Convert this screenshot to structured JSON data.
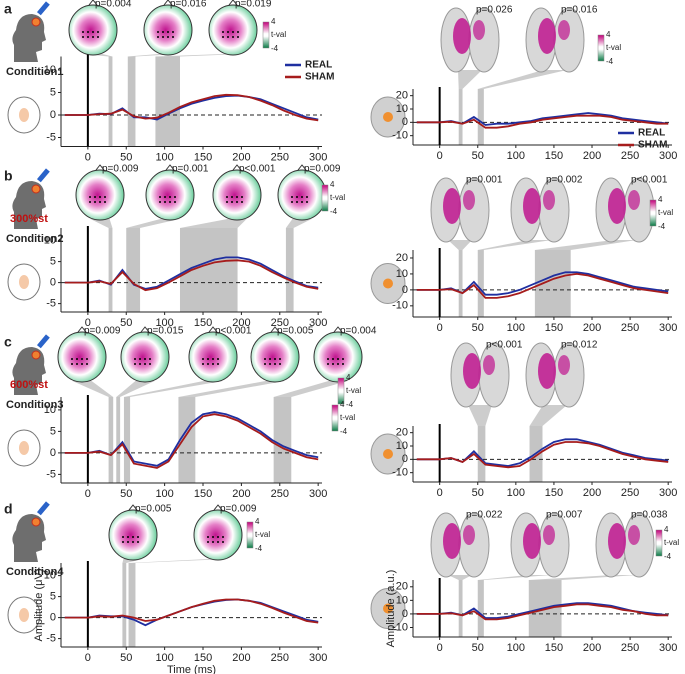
{
  "panels": [
    {
      "letter": "a",
      "condition": "Condition1"
    },
    {
      "letter": "b",
      "condition": "Condition2",
      "intensity": "300%st"
    },
    {
      "letter": "c",
      "condition": "Condition3",
      "intensity": "600%st"
    },
    {
      "letter": "d",
      "condition": "Condition4"
    }
  ],
  "chart_data": [
    {
      "type": "line",
      "x": [
        -30,
        -15,
        0,
        15,
        30,
        45,
        60,
        75,
        90,
        105,
        120,
        135,
        150,
        165,
        180,
        195,
        210,
        225,
        240,
        255,
        270,
        285,
        300
      ],
      "xlim": [
        -35,
        305
      ],
      "xticks": [
        0,
        50,
        100,
        150,
        200,
        250,
        300
      ],
      "ylim": [
        -7,
        13
      ],
      "yticks": [
        -5,
        0,
        5,
        10
      ],
      "series": [
        {
          "name": "REAL",
          "color": "#1f2fa0",
          "values": [
            0,
            0,
            0,
            0.3,
            0.2,
            1.5,
            -0.5,
            -0.5,
            -1,
            0.3,
            1.5,
            2.5,
            3.2,
            3.8,
            4.2,
            4.3,
            4.0,
            3.5,
            2.5,
            1.5,
            0.5,
            -0.5,
            -1
          ]
        },
        {
          "name": "SHAM",
          "color": "#a61c1c",
          "values": [
            0,
            0,
            0,
            0.2,
            0.3,
            1.2,
            -0.3,
            -0.8,
            -0.6,
            0.5,
            1.8,
            2.8,
            3.5,
            4.2,
            4.5,
            4.4,
            4.0,
            3.2,
            2.2,
            1.0,
            0,
            -0.8,
            -1.2
          ]
        }
      ],
      "clusters": [
        {
          "label": "p=0.004",
          "start": 27,
          "end": 32
        },
        {
          "label": "p=0.016",
          "start": 52,
          "end": 62
        },
        {
          "label": "p=0.019",
          "start": 88,
          "end": 120
        }
      ],
      "colorbar": {
        "ticks": [
          -4,
          4
        ],
        "label": "t-val"
      },
      "legend": true
    },
    {
      "type": "line",
      "x": [
        -30,
        -15,
        0,
        15,
        30,
        45,
        60,
        75,
        90,
        105,
        120,
        135,
        150,
        165,
        180,
        195,
        210,
        225,
        240,
        255,
        270,
        285,
        300
      ],
      "xlim": [
        -35,
        305
      ],
      "xticks": [
        0,
        50,
        100,
        150,
        200,
        250,
        300
      ],
      "ylim": [
        -17,
        25
      ],
      "yticks": [
        -10,
        0,
        10,
        20
      ],
      "series": [
        {
          "name": "REAL",
          "color": "#1f2fa0",
          "values": [
            0,
            0,
            0,
            1,
            -1,
            4,
            -2,
            -1,
            -1,
            0,
            1,
            3,
            4,
            5,
            6,
            7,
            6,
            5,
            3,
            2,
            1,
            0,
            -1
          ]
        },
        {
          "name": "SHAM",
          "color": "#a61c1c",
          "values": [
            0,
            0,
            0,
            0.5,
            -1,
            2,
            -4,
            -4,
            -3,
            -1,
            0,
            2,
            3,
            4,
            5,
            5,
            5,
            4,
            2,
            1,
            0,
            -1,
            -1
          ]
        }
      ],
      "clusters": [
        {
          "label": "p=0.026",
          "start": 25,
          "end": 30
        },
        {
          "label": "p=0.016",
          "start": 50,
          "end": 58
        }
      ],
      "colorbar": {
        "ticks": [
          -4,
          4
        ],
        "label": "t-val"
      },
      "legend": true
    },
    {
      "type": "line",
      "x": [
        -30,
        -15,
        0,
        15,
        30,
        45,
        60,
        75,
        90,
        105,
        120,
        135,
        150,
        165,
        180,
        195,
        210,
        225,
        240,
        255,
        270,
        285,
        300
      ],
      "xlim": [
        -35,
        305
      ],
      "xticks": [
        0,
        50,
        100,
        150,
        200,
        250,
        300
      ],
      "ylim": [
        -7,
        13
      ],
      "yticks": [
        -5,
        0,
        5,
        10
      ],
      "series": [
        {
          "name": "REAL",
          "color": "#1f2fa0",
          "values": [
            0,
            0,
            0,
            0.5,
            -0.5,
            3,
            -0.5,
            -1.5,
            -1,
            0.5,
            2,
            3.5,
            4.5,
            5.5,
            6,
            6,
            5.5,
            4.5,
            3,
            1.5,
            0.3,
            -0.8,
            -1.2
          ]
        },
        {
          "name": "SHAM",
          "color": "#a61c1c",
          "values": [
            0,
            0,
            0,
            0.3,
            -0.3,
            2.5,
            -0.3,
            -1.8,
            -1.3,
            0,
            1.5,
            3,
            4,
            4.8,
            5.2,
            5.3,
            5,
            4,
            2.5,
            1.2,
            0,
            -1,
            -1.5
          ]
        }
      ],
      "clusters": [
        {
          "label": "p=0.009",
          "start": 27,
          "end": 32
        },
        {
          "label": "p=0.001",
          "start": 50,
          "end": 68
        },
        {
          "label": "p<0.001",
          "start": 120,
          "end": 195
        },
        {
          "label": "p=0.009",
          "start": 258,
          "end": 268
        }
      ],
      "colorbar": {
        "ticks": [
          -4,
          4
        ],
        "label": "t-val"
      },
      "legend": false
    },
    {
      "type": "line",
      "x": [
        -30,
        -15,
        0,
        15,
        30,
        45,
        60,
        75,
        90,
        105,
        120,
        135,
        150,
        165,
        180,
        195,
        210,
        225,
        240,
        255,
        270,
        285,
        300
      ],
      "xlim": [
        -35,
        305
      ],
      "xticks": [
        0,
        50,
        100,
        150,
        200,
        250,
        300
      ],
      "ylim": [
        -17,
        25
      ],
      "yticks": [
        -10,
        0,
        10,
        20
      ],
      "series": [
        {
          "name": "REAL",
          "color": "#1f2fa0",
          "values": [
            0,
            0,
            0,
            1,
            -2,
            5,
            -3,
            -3,
            -2,
            0,
            3,
            6,
            9,
            11,
            11,
            10,
            8,
            6,
            4,
            2,
            1,
            0,
            -1
          ]
        },
        {
          "name": "SHAM",
          "color": "#a61c1c",
          "values": [
            0,
            0,
            0,
            0.5,
            -2,
            3,
            -5,
            -5,
            -4,
            -2,
            1,
            4,
            7,
            9,
            10,
            9,
            7,
            5,
            3,
            1,
            0,
            -1,
            -2
          ]
        }
      ],
      "clusters": [
        {
          "label": "p=0.001",
          "start": 25,
          "end": 30
        },
        {
          "label": "p=0.002",
          "start": 50,
          "end": 58
        },
        {
          "label": "p<0.001",
          "start": 125,
          "end": 172
        }
      ],
      "colorbar": {
        "ticks": [
          -4,
          4
        ],
        "label": "t-val"
      },
      "legend": false
    },
    {
      "type": "line",
      "x": [
        -30,
        -15,
        0,
        15,
        30,
        45,
        60,
        75,
        90,
        105,
        120,
        135,
        150,
        165,
        180,
        195,
        210,
        225,
        240,
        255,
        270,
        285,
        300
      ],
      "xlim": [
        -35,
        305
      ],
      "xticks": [
        0,
        50,
        100,
        150,
        200,
        250,
        300
      ],
      "ylim": [
        -7,
        13
      ],
      "yticks": [
        -5,
        0,
        5,
        10
      ],
      "series": [
        {
          "name": "REAL",
          "color": "#1f2fa0",
          "values": [
            0,
            0,
            0,
            0.5,
            -0.5,
            2.5,
            -2,
            -2.5,
            -3,
            -1.5,
            3,
            7,
            9,
            9.5,
            9,
            8,
            6.5,
            5,
            3,
            1.5,
            0.5,
            -0.5,
            -1
          ]
        },
        {
          "name": "SHAM",
          "color": "#a61c1c",
          "values": [
            0,
            0,
            0,
            0.3,
            -0.5,
            2,
            -2.5,
            -3,
            -3.5,
            -2,
            2,
            6,
            8.5,
            9,
            8.5,
            7.5,
            6,
            4.5,
            2.5,
            1,
            0,
            -1,
            -1.5
          ]
        }
      ],
      "clusters": [
        {
          "label": "p=0.009",
          "start": 27,
          "end": 33
        },
        {
          "label": "p=0.015",
          "start": 37,
          "end": 42
        },
        {
          "label": "p<0.001",
          "start": 47,
          "end": 55
        },
        {
          "label": "p=0.005",
          "start": 118,
          "end": 140
        },
        {
          "label": "p=0.004",
          "start": 242,
          "end": 265
        }
      ],
      "colorbar": {
        "ticks": [
          -4,
          4
        ],
        "label": "t-val"
      },
      "legend": false
    },
    {
      "type": "line",
      "x": [
        -30,
        -15,
        0,
        15,
        30,
        45,
        60,
        75,
        90,
        105,
        120,
        135,
        150,
        165,
        180,
        195,
        210,
        225,
        240,
        255,
        270,
        285,
        300
      ],
      "xlim": [
        -35,
        305
      ],
      "xticks": [
        0,
        50,
        100,
        150,
        200,
        250,
        300
      ],
      "ylim": [
        -17,
        25
      ],
      "yticks": [
        -10,
        0,
        10,
        20
      ],
      "series": [
        {
          "name": "REAL",
          "color": "#1f2fa0",
          "values": [
            0,
            0,
            0,
            1,
            -2,
            6,
            -3,
            -4,
            -5,
            -3,
            2,
            8,
            13,
            15,
            15,
            13,
            11,
            8,
            5,
            3,
            1,
            0,
            -1
          ]
        },
        {
          "name": "SHAM",
          "color": "#a61c1c",
          "values": [
            0,
            0,
            0,
            1,
            -2,
            4,
            -4,
            -5,
            -6,
            -5,
            0,
            6,
            11,
            13,
            13,
            12,
            10,
            7,
            4,
            2,
            0,
            -1,
            -2
          ]
        }
      ],
      "clusters": [
        {
          "label": "p<0.001",
          "start": 50,
          "end": 60
        },
        {
          "label": "p=0.012",
          "start": 118,
          "end": 135
        }
      ],
      "colorbar": {
        "ticks": [
          -4,
          4
        ],
        "label": "t-val"
      },
      "legend": false
    },
    {
      "type": "line",
      "x": [
        -30,
        -15,
        0,
        15,
        30,
        45,
        60,
        75,
        90,
        105,
        120,
        135,
        150,
        165,
        180,
        195,
        210,
        225,
        240,
        255,
        270,
        285,
        300
      ],
      "xlim": [
        -35,
        305
      ],
      "xticks": [
        0,
        50,
        100,
        150,
        200,
        250,
        300
      ],
      "ylim": [
        -7,
        13
      ],
      "yticks": [
        -5,
        0,
        5,
        10
      ],
      "series": [
        {
          "name": "REAL",
          "color": "#1f2fa0",
          "values": [
            0,
            0,
            0,
            0.5,
            0.3,
            0.3,
            -0.5,
            -1.8,
            -0.5,
            0.5,
            1.5,
            2.5,
            3.2,
            3.8,
            4.2,
            4.3,
            4,
            3.5,
            2.5,
            1.5,
            0.5,
            -0.5,
            -1
          ]
        },
        {
          "name": "SHAM",
          "color": "#a61c1c",
          "values": [
            0,
            0,
            0,
            0.3,
            0.2,
            0.5,
            0,
            -0.8,
            -0.5,
            0.5,
            1.5,
            2.5,
            3.3,
            4,
            4.3,
            4.3,
            4,
            3.3,
            2.3,
            1.2,
            0.2,
            -0.8,
            -1.2
          ]
        }
      ],
      "clusters": [
        {
          "label": "p=0.005",
          "start": 45,
          "end": 50
        },
        {
          "label": "p=0.009",
          "start": 53,
          "end": 62
        }
      ],
      "colorbar": {
        "ticks": [
          -4,
          4
        ],
        "label": "t-val"
      },
      "legend": false,
      "xlabel": "Time (ms)",
      "ylabel": "Amplitude (μV)"
    },
    {
      "type": "line",
      "x": [
        -30,
        -15,
        0,
        15,
        30,
        45,
        60,
        75,
        90,
        105,
        120,
        135,
        150,
        165,
        180,
        195,
        210,
        225,
        240,
        255,
        270,
        285,
        300
      ],
      "xlim": [
        -35,
        305
      ],
      "xticks": [
        0,
        50,
        100,
        150,
        200,
        250,
        300
      ],
      "ylim": [
        -17,
        25
      ],
      "yticks": [
        -10,
        0,
        10,
        20
      ],
      "series": [
        {
          "name": "REAL",
          "color": "#1f2fa0",
          "values": [
            0,
            0,
            0,
            1,
            -1,
            4,
            -3,
            -3,
            -2,
            0,
            2,
            4,
            6,
            7,
            8,
            8,
            7,
            6,
            4,
            2,
            1,
            0,
            -1
          ]
        },
        {
          "name": "SHAM",
          "color": "#a61c1c",
          "values": [
            0,
            0,
            0,
            0.5,
            -1,
            2,
            -4,
            -4,
            -3,
            -1,
            1,
            3,
            5,
            6,
            7,
            7,
            6,
            5,
            3,
            2,
            0,
            -1,
            -1
          ]
        }
      ],
      "clusters": [
        {
          "label": "p=0.022",
          "start": 25,
          "end": 30
        },
        {
          "label": "p=0.007",
          "start": 50,
          "end": 58
        },
        {
          "label": "p=0.038",
          "start": 117,
          "end": 160
        }
      ],
      "colorbar": {
        "ticks": [
          -4,
          4
        ],
        "label": "t-val"
      },
      "legend": false,
      "ylabel": "Amplitude (a.u.)"
    }
  ]
}
